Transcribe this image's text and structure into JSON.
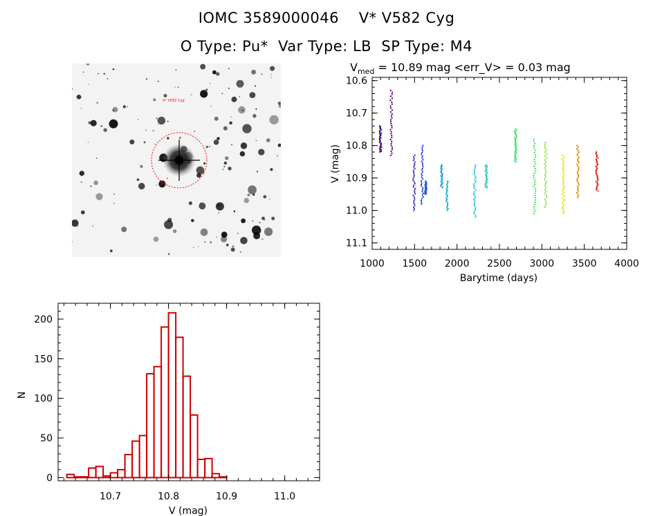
{
  "header": {
    "line1": "IOMC 3589000046    V* V582 Cyg",
    "line2": "O Type: Pu*  Var Type: LB  SP Type: M4"
  },
  "colors": {
    "axis": "#000000",
    "hist": "#cc0000",
    "aperture": "#ff0000"
  },
  "chart_data": [
    {
      "type": "image",
      "content": "star field",
      "labels": [
        "V* V582 Cyg"
      ],
      "marker": "circle"
    },
    {
      "type": "scatter",
      "title_prefix": "V",
      "title_sub": "med",
      "title_rest": " = 10.89 mag <err_V> = 0.03 mag",
      "xlabel": "Barytime (days)",
      "ylabel": "V (mag)",
      "xlim": [
        1000,
        4000
      ],
      "ylim": [
        11.12,
        10.59
      ],
      "y_inverted": true,
      "xticks": [
        1000,
        1500,
        2000,
        2500,
        3000,
        3500,
        4000
      ],
      "xtick_labels": [
        "1000",
        "1500",
        "2000",
        "2500",
        "3000",
        "3500",
        "4000"
      ],
      "yticks": [
        10.6,
        10.7,
        10.8,
        10.9,
        11.0,
        11.1
      ],
      "ytick_labels": [
        "10.6",
        "10.7",
        "10.8",
        "10.9",
        "11.0",
        "11.1"
      ],
      "groups": [
        {
          "x": 1100,
          "y_min": 10.74,
          "y_max": 10.82,
          "color": "#3a006e"
        },
        {
          "x": 1225,
          "y_min": 10.63,
          "y_max": 10.83,
          "color": "#4b0082"
        },
        {
          "x": 1495,
          "y_min": 10.83,
          "y_max": 11.0,
          "color": "#3a2ab0"
        },
        {
          "x": 1590,
          "y_min": 10.8,
          "y_max": 10.98,
          "color": "#1a3ad0"
        },
        {
          "x": 1630,
          "y_min": 10.91,
          "y_max": 10.95,
          "color": "#2060d0"
        },
        {
          "x": 1820,
          "y_min": 10.86,
          "y_max": 10.93,
          "color": "#30a0d8"
        },
        {
          "x": 1885,
          "y_min": 10.91,
          "y_max": 11.0,
          "color": "#30b8d8"
        },
        {
          "x": 2210,
          "y_min": 10.86,
          "y_max": 11.02,
          "color": "#30c8d8"
        },
        {
          "x": 2345,
          "y_min": 10.86,
          "y_max": 10.93,
          "color": "#30d0d0"
        },
        {
          "x": 2690,
          "y_min": 10.75,
          "y_max": 10.85,
          "color": "#30e060"
        },
        {
          "x": 2915,
          "y_min": 10.78,
          "y_max": 11.01,
          "color": "#40e040"
        },
        {
          "x": 3045,
          "y_min": 10.79,
          "y_max": 10.99,
          "color": "#80e020"
        },
        {
          "x": 3255,
          "y_min": 10.83,
          "y_max": 11.01,
          "color": "#d8e000"
        },
        {
          "x": 3425,
          "y_min": 10.8,
          "y_max": 10.96,
          "color": "#e88000"
        },
        {
          "x": 3650,
          "y_min": 10.82,
          "y_max": 10.94,
          "color": "#e02010"
        }
      ]
    },
    {
      "type": "bar",
      "xlabel": "V (mag)",
      "ylabel": "N",
      "xlim": [
        10.61,
        11.06
      ],
      "ylim": [
        -4,
        220
      ],
      "xticks": [
        10.7,
        10.8,
        10.9,
        11.0
      ],
      "xtick_labels": [
        "10.7",
        "10.8",
        "10.9",
        "11.0"
      ],
      "yticks": [
        0,
        50,
        100,
        150,
        200
      ],
      "ytick_labels": [
        "0",
        "50",
        "100",
        "150",
        "200"
      ],
      "bin_width": 0.0125,
      "bin_start": 10.625,
      "values": [
        4,
        1,
        1,
        12,
        14,
        2,
        6,
        10,
        29,
        46,
        53,
        131,
        140,
        190,
        208,
        177,
        128,
        79,
        23,
        24,
        5,
        1
      ]
    }
  ]
}
